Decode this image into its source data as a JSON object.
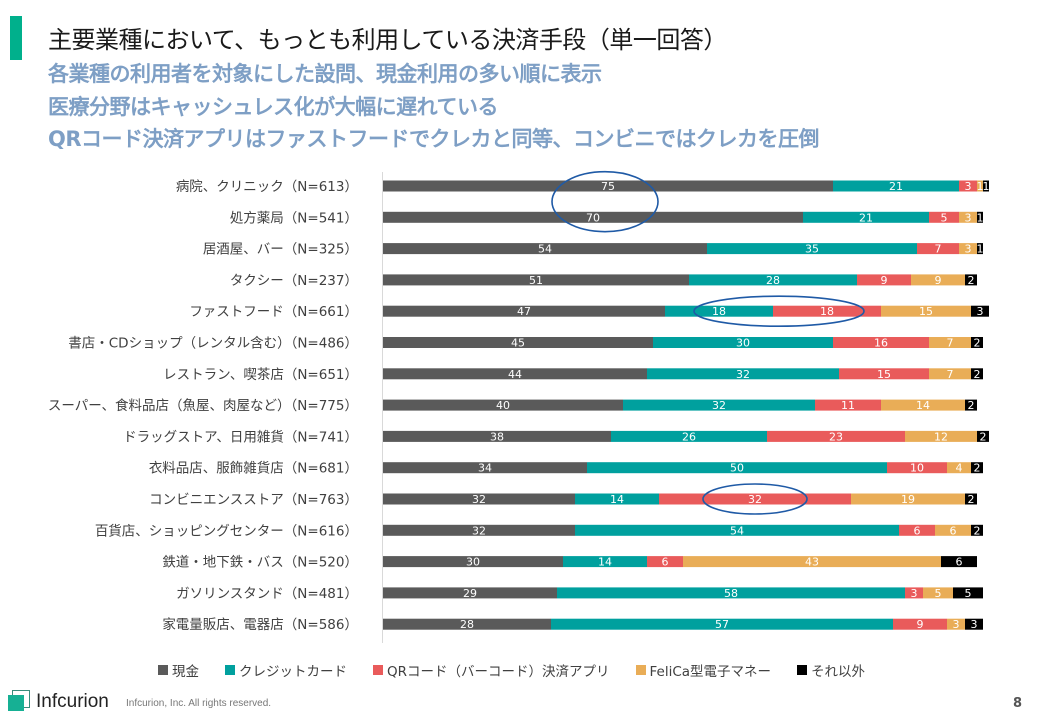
{
  "header": {
    "title": "主要業種において、もっとも利用している決済手段（単一回答）",
    "subtitles": [
      "各業種の利用者を対象にした設問、現金利用の多い順に表示",
      "医療分野はキャッシュレス化が大幅に遅れている",
      "QRコード決済アプリはファストフードでクレカと同等、コンビニではクレカを圧倒"
    ],
    "accent_color": "#00b08c",
    "subtitle_color": "#7e9fc5"
  },
  "chart_data": {
    "type": "bar",
    "orientation": "horizontal",
    "stacked": true,
    "title": "主要業種において、もっとも利用している決済手段（単一回答）",
    "xlabel": "",
    "ylabel": "",
    "xlim": [
      0,
      100
    ],
    "unit": "%",
    "grid": false,
    "legend_position": "bottom",
    "categories": [
      "病院、クリニック（N=613）",
      "処方薬局（N=541）",
      "居酒屋、バー（N=325）",
      "タクシー（N=237）",
      "ファストフード（N=661）",
      "書店・CDショップ（レンタル含む）（N=486）",
      "レストラン、喫茶店（N=651）",
      "スーパー、食料品店（魚屋、肉屋など）（N=775）",
      "ドラッグストア、日用雑貨（N=741）",
      "衣料品店、服飾雑貨店（N=681）",
      "コンビニエンスストア（N=763）",
      "百貨店、ショッピングセンター（N=616）",
      "鉄道・地下鉄・バス（N=520）",
      "ガソリンスタンド（N=481）",
      "家電量販店、電器店（N=586）"
    ],
    "series": [
      {
        "name": "現金",
        "color": "#5a5a5a",
        "values": [
          75,
          70,
          54,
          51,
          47,
          45,
          44,
          40,
          38,
          34,
          32,
          32,
          30,
          29,
          28
        ]
      },
      {
        "name": "クレジットカード",
        "color": "#00a09e",
        "values": [
          21,
          21,
          35,
          28,
          18,
          30,
          32,
          32,
          26,
          50,
          14,
          54,
          14,
          58,
          57
        ]
      },
      {
        "name": "QRコード（バーコード）決済アプリ",
        "color": "#e95b5b",
        "values": [
          3,
          5,
          7,
          9,
          18,
          16,
          15,
          11,
          23,
          10,
          32,
          6,
          6,
          3,
          9
        ]
      },
      {
        "name": "FeliCa型電子マネー",
        "color": "#e9ad57",
        "values": [
          1,
          3,
          3,
          9,
          15,
          7,
          7,
          14,
          12,
          4,
          19,
          6,
          43,
          5,
          3
        ]
      },
      {
        "name": "それ以外",
        "color": "#000000",
        "values": [
          1,
          1,
          1,
          2,
          3,
          2,
          2,
          2,
          2,
          2,
          2,
          2,
          6,
          5,
          3
        ]
      }
    ],
    "annotations": [
      {
        "type": "ellipse",
        "target": "現金: 病院、クリニック & 処方薬局",
        "color": "#1f5aa6"
      },
      {
        "type": "ellipse",
        "target": "ファストフード: クレジットカード 18 & QRコード 18",
        "color": "#1f5aa6"
      },
      {
        "type": "ellipse",
        "target": "コンビニエンスストア: QRコード 32",
        "color": "#1f5aa6"
      }
    ]
  },
  "legend": [
    {
      "label": "現金",
      "color": "#5a5a5a"
    },
    {
      "label": "クレジットカード",
      "color": "#00a09e"
    },
    {
      "label": "QRコード（バーコード）決済アプリ",
      "color": "#e95b5b"
    },
    {
      "label": "FeliCa型電子マネー",
      "color": "#e9ad57"
    },
    {
      "label": "それ以外",
      "color": "#000000"
    }
  ],
  "footer": {
    "brand": "Infcurion",
    "copyright": "Infcurion, Inc.  All rights reserved.",
    "page_number": "8"
  }
}
